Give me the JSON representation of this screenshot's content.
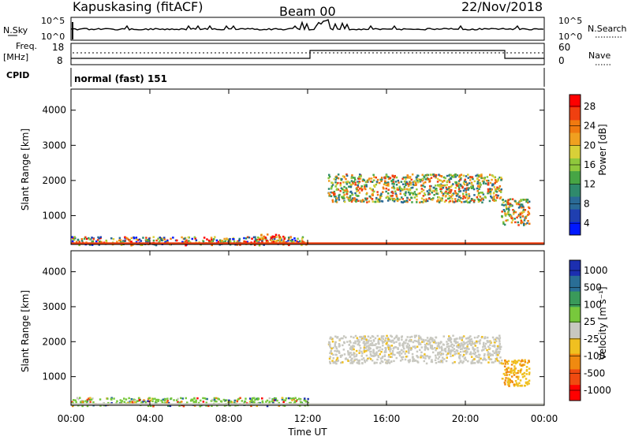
{
  "header": {
    "station": "Kapuskasing (fitACF)",
    "beam": "Beam 00",
    "date": "22/Nov/2018"
  },
  "status_panels": {
    "nsky_label": "N.Sky",
    "nsky_ticks": [
      "10^5",
      "10^0"
    ],
    "nsearch_label": "N.Search",
    "nsearch_ticks": [
      "10^5",
      "10^0"
    ],
    "freq_label": "Freq.",
    "freq_unit": "[MHz]",
    "freq_ticks": [
      "18",
      "8"
    ],
    "nave_label": "Nave",
    "nave_ticks": [
      "60",
      "0"
    ],
    "cpid_label": "CPID",
    "cpid_value": "normal (fast) 151"
  },
  "chart_data": [
    {
      "type": "heatmap",
      "panel": "power",
      "ylabel": "Slant Range [km]",
      "yticks": [
        "4000",
        "3000",
        "2000",
        "1000"
      ],
      "ylim": [
        180,
        4600
      ],
      "xlim": [
        0,
        24
      ],
      "colorbar_label": "Power [dB]",
      "colorbar_ticks": [
        "28",
        "24",
        "20",
        "16",
        "12",
        "8",
        "4"
      ],
      "colorbar_colors": [
        "#0018ff",
        "#1f3fb0",
        "#2a6a96",
        "#2f8a6c",
        "#47a545",
        "#8fc83c",
        "#d8d038",
        "#f0a020",
        "#f07a10",
        "#f04010",
        "#ff0000"
      ],
      "regions": [
        {
          "t0": 0.0,
          "t1": 12.0,
          "r0": 180,
          "r1": 420,
          "level": "low-mixed"
        },
        {
          "t0": 9.5,
          "t1": 10.8,
          "r0": 250,
          "r1": 500,
          "level": "high"
        },
        {
          "t0": 13.0,
          "t1": 21.8,
          "r0": 1400,
          "r1": 2200,
          "level": "mid"
        },
        {
          "t0": 21.8,
          "t1": 23.2,
          "r0": 750,
          "r1": 1500,
          "level": "mid-high"
        }
      ]
    },
    {
      "type": "heatmap",
      "panel": "velocity",
      "ylabel": "Slant Range [km]",
      "xlabel": "Time UT",
      "yticks": [
        "4000",
        "3000",
        "2000",
        "1000"
      ],
      "xticks": [
        "00:00",
        "04:00",
        "08:00",
        "12:00",
        "16:00",
        "20:00",
        "00:00"
      ],
      "xlim": [
        0,
        24
      ],
      "ylim": [
        180,
        4600
      ],
      "colorbar_label": "Velocity [m s⁻¹]",
      "colorbar_ticks": [
        "1000",
        "500",
        "100",
        "25",
        "-25",
        "-100",
        "-500",
        "-1000"
      ],
      "colorbar_colors": [
        "#1c2fb0",
        "#2a6e96",
        "#3a9a5a",
        "#78c83c",
        "#c8c8c0",
        "#f0c020",
        "#f08a10",
        "#f04a10",
        "#ff0000"
      ],
      "regions": [
        {
          "t0": 0.0,
          "t1": 12.0,
          "r0": 180,
          "r1": 420,
          "level": "green-mixed"
        },
        {
          "t0": 13.0,
          "t1": 21.8,
          "r0": 1400,
          "r1": 2200,
          "level": "grey"
        },
        {
          "t0": 21.8,
          "t1": 23.2,
          "r0": 750,
          "r1": 1500,
          "level": "orange"
        }
      ]
    }
  ]
}
